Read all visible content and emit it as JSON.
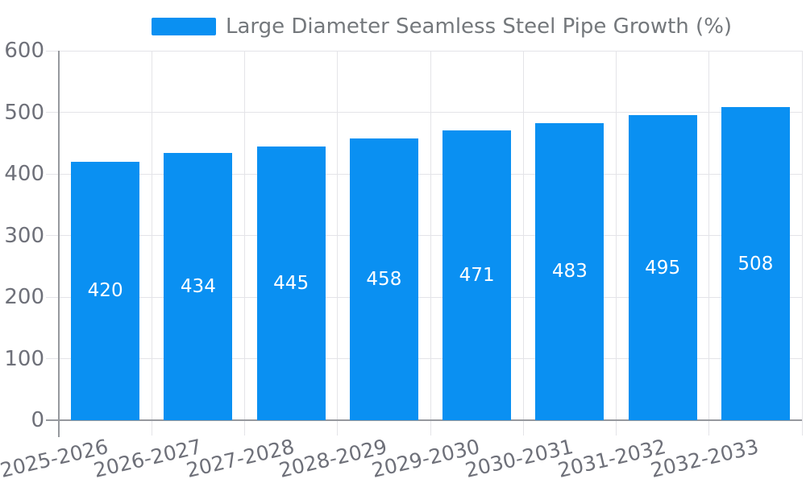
{
  "chart_data": {
    "type": "bar",
    "title": "",
    "categories": [
      "2025-2026",
      "2026-2027",
      "2027-2028",
      "2028-2029",
      "2029-2030",
      "2030-2031",
      "2031-2032",
      "2032-2033"
    ],
    "series": [
      {
        "name": "Large Diameter Seamless Steel Pipe Growth (%)",
        "values": [
          420,
          434,
          445,
          458,
          471,
          483,
          495,
          508
        ],
        "color": "#0a90f2"
      }
    ],
    "xlabel": "",
    "ylabel": "",
    "ylim": [
      0,
      600
    ],
    "y_ticks": [
      0,
      100,
      200,
      300,
      400,
      500,
      600
    ],
    "grid": true,
    "legend_position": "top-center",
    "value_label_position": "inside-center",
    "x_tick_rotation_deg": -13
  },
  "colors": {
    "bar": "#0a90f2",
    "gridline": "#e4e4e8",
    "axis_line": "#96999e",
    "tick_label": "#6e7079",
    "legend_text": "#74787c",
    "value_label": "#ffffff",
    "background": "#ffffff"
  }
}
